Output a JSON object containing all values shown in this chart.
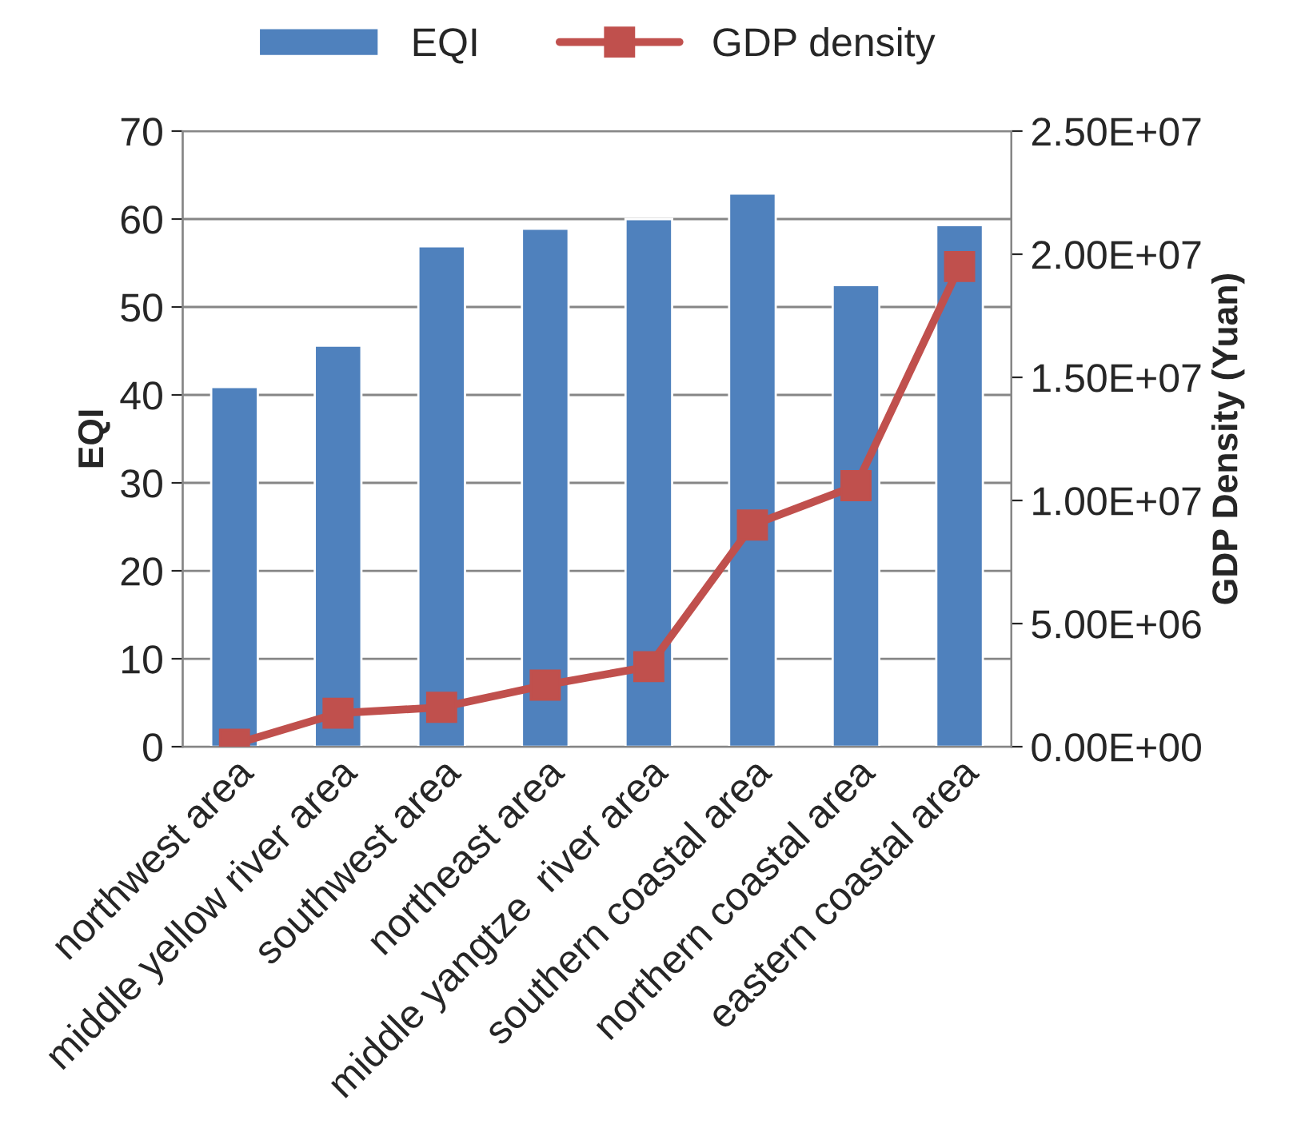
{
  "chart_data": {
    "type": "bar",
    "categories": [
      "northwest area",
      "middle yellow river area",
      "southwest area",
      "northeast area",
      "middle yangtze  river area",
      "southern coastal area",
      "northern coastal area",
      "eastern coastal area"
    ],
    "series": [
      {
        "name": "EQI",
        "color": "#4f81bd",
        "values": [
          40.9,
          45.6,
          56.9,
          58.9,
          60,
          62.9,
          52.5,
          59.3
        ]
      },
      {
        "name": "GDP density",
        "type": "line",
        "axis": "y2",
        "color": "#c0504d",
        "marker": "square",
        "values": [
          100000,
          1360000,
          1600000,
          2500000,
          3250000,
          9000000,
          10600000,
          19500000
        ]
      }
    ],
    "ylabel": "EQI",
    "y2label": "GDP Density (Yuan)",
    "ylim": [
      0,
      70
    ],
    "yticks": [
      0,
      10,
      20,
      30,
      40,
      50,
      60,
      70
    ],
    "y2lim": [
      0,
      25000000
    ],
    "y2ticks": [
      {
        "value": 0,
        "label": "0.00E+00"
      },
      {
        "value": 5000000,
        "label": "5.00E+06"
      },
      {
        "value": 10000000,
        "label": "1.00E+07"
      },
      {
        "value": 15000000,
        "label": "1.50E+07"
      },
      {
        "value": 20000000,
        "label": "2.00E+07"
      },
      {
        "value": 25000000,
        "label": "2.50E+07"
      }
    ],
    "grid": "y",
    "legend": "top"
  }
}
